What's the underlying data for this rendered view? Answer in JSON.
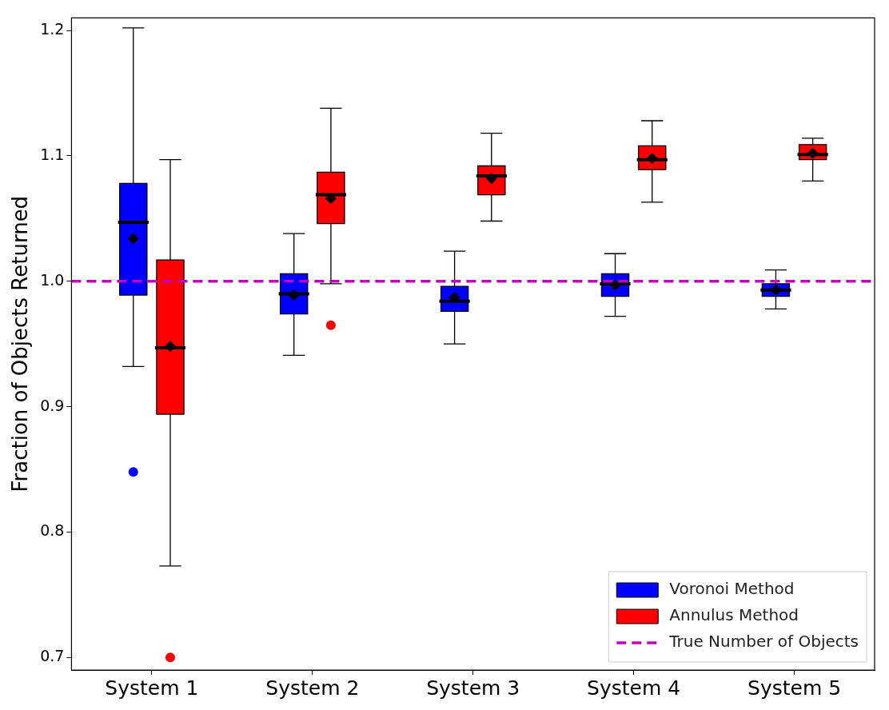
{
  "chart_data": {
    "type": "box",
    "ylabel": "Fraction of Objects Returned",
    "categories": [
      "System 1",
      "System 2",
      "System 3",
      "System 4",
      "System 5"
    ],
    "ylim": [
      0.69,
      1.21
    ],
    "yticks": [
      0.7,
      0.8,
      0.9,
      {
        "value": 1,
        "label": "1.0"
      },
      1.1,
      1.2
    ],
    "grid": false,
    "legend": "bottom right",
    "marker": "diamond",
    "series": [
      {
        "name": "Voronoi Method",
        "color": "#0000ff",
        "boxes": [
          {
            "low": 0.932,
            "q1": 0.989,
            "median": 1.047,
            "q3": 1.078,
            "high": 1.202,
            "mean": 1.034,
            "outliers": [
              0.848
            ]
          },
          {
            "low": 0.941,
            "q1": 0.974,
            "median": 0.99,
            "q3": 1.006,
            "high": 1.038,
            "mean": 0.989
          },
          {
            "low": 0.95,
            "q1": 0.976,
            "median": 0.984,
            "q3": 0.996,
            "high": 1.024,
            "mean": 0.987
          },
          {
            "low": 0.972,
            "q1": 0.988,
            "median": 0.998,
            "q3": 1.006,
            "high": 1.022,
            "mean": 0.997
          },
          {
            "low": 0.978,
            "q1": 0.988,
            "median": 0.993,
            "q3": 0.998,
            "high": 1.009,
            "mean": 0.993
          }
        ]
      },
      {
        "name": "Annulus Method",
        "color": "#ff0000",
        "boxes": [
          {
            "low": 0.773,
            "q1": 0.894,
            "median": 0.947,
            "q3": 1.017,
            "high": 1.097,
            "mean": 0.948,
            "outliers": [
              0.7
            ]
          },
          {
            "low": 0.998,
            "q1": 1.046,
            "median": 1.069,
            "q3": 1.087,
            "high": 1.138,
            "mean": 1.066,
            "outliers": [
              0.965
            ]
          },
          {
            "low": 1.048,
            "q1": 1.069,
            "median": 1.084,
            "q3": 1.092,
            "high": 1.118,
            "mean": 1.082
          },
          {
            "low": 1.063,
            "q1": 1.089,
            "median": 1.097,
            "q3": 1.108,
            "high": 1.128,
            "mean": 1.098
          },
          {
            "low": 1.08,
            "q1": 1.097,
            "median": 1.101,
            "q3": 1.109,
            "high": 1.114,
            "mean": 1.102
          }
        ]
      }
    ],
    "ref_lines": [
      {
        "axis": "y",
        "value": 1,
        "label": "True Number of Objects",
        "color": "#bf00bf",
        "line_style": "dashed"
      }
    ]
  }
}
